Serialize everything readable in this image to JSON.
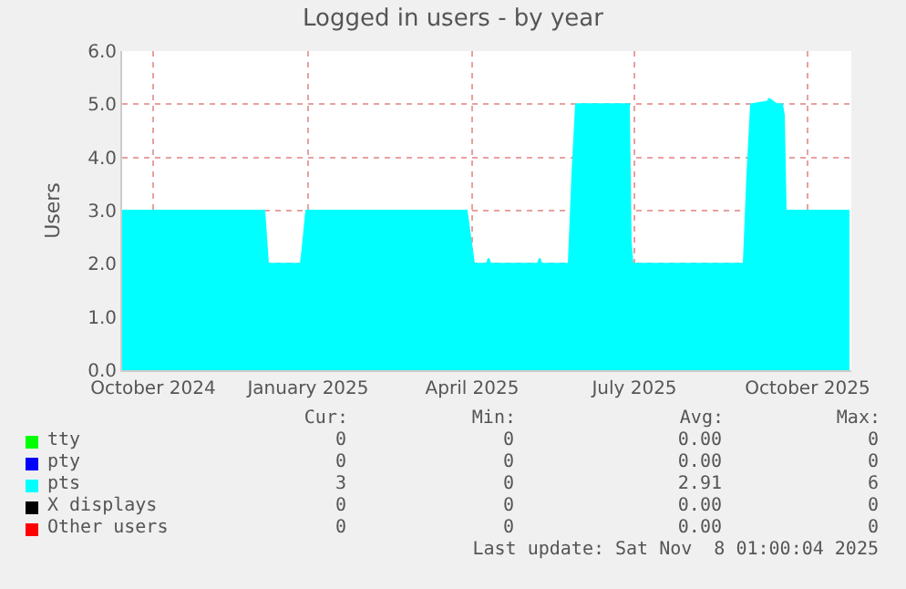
{
  "chart_data": {
    "type": "area",
    "title": "Logged in users - by year",
    "ylabel": "Users",
    "x": [
      "2024-10-04",
      "2024-12-21",
      "2024-12-22",
      "2024-12-23",
      "2025-01-10",
      "2025-01-11",
      "2025-01-13",
      "2025-04-11",
      "2025-04-13",
      "2025-04-15",
      "2025-04-22",
      "2025-04-23",
      "2025-04-24",
      "2025-05-20",
      "2025-05-21",
      "2025-05-22",
      "2025-06-06",
      "2025-06-08",
      "2025-06-10",
      "2025-07-09",
      "2025-07-10",
      "2025-07-11",
      "2025-09-10",
      "2025-09-12",
      "2025-09-14",
      "2025-09-23",
      "2025-09-24",
      "2025-09-28",
      "2025-10-01",
      "2025-10-02",
      "2025-10-03",
      "2025-11-07"
    ],
    "series": [
      {
        "name": "tty",
        "color": "#00ff00",
        "values": [
          null,
          null,
          null,
          null,
          null,
          null,
          null,
          null,
          null,
          null,
          null,
          null,
          null,
          null,
          null,
          null,
          null,
          null,
          null,
          null,
          null,
          null,
          null,
          null,
          null,
          null,
          null,
          null,
          null,
          null,
          null,
          null
        ]
      },
      {
        "name": "pty",
        "color": "#0000ff",
        "values": [
          null,
          null,
          null,
          null,
          null,
          null,
          null,
          null,
          null,
          null,
          null,
          null,
          null,
          null,
          null,
          null,
          null,
          null,
          null,
          null,
          null,
          null,
          null,
          null,
          null,
          null,
          null,
          null,
          null,
          null,
          null,
          null
        ]
      },
      {
        "name": "pts",
        "color": "#00ffff",
        "values": [
          3,
          3,
          2.5,
          2,
          2,
          2.3,
          3,
          3,
          2.5,
          2,
          2,
          2.1,
          2,
          2,
          2.1,
          2,
          2,
          3.7,
          5,
          5,
          2.4,
          2,
          2,
          3.7,
          5,
          5.05,
          5.1,
          5,
          5,
          4.8,
          3,
          3
        ]
      },
      {
        "name": "X displays",
        "color": "#000000",
        "values": [
          null,
          null,
          null,
          null,
          null,
          null,
          null,
          null,
          null,
          null,
          null,
          null,
          null,
          null,
          null,
          null,
          null,
          null,
          null,
          null,
          null,
          null,
          null,
          null,
          null,
          null,
          null,
          null,
          null,
          null,
          null,
          null
        ]
      },
      {
        "name": "Other users",
        "color": "#ff0000",
        "values": [
          null,
          null,
          null,
          null,
          null,
          null,
          null,
          null,
          null,
          null,
          null,
          null,
          null,
          null,
          null,
          null,
          null,
          null,
          null,
          null,
          null,
          null,
          null,
          null,
          null,
          null,
          null,
          null,
          null,
          null,
          null,
          null
        ]
      }
    ],
    "xlim": [
      "2024-10-04",
      "2025-11-08"
    ],
    "xticks": [
      {
        "value": "2024-10-21",
        "label": "October 2024"
      },
      {
        "value": "2025-01-14",
        "label": "January 2025"
      },
      {
        "value": "2025-04-14",
        "label": "April 2025"
      },
      {
        "value": "2025-07-12",
        "label": "July 2025"
      },
      {
        "value": "2025-10-15",
        "label": "October 2025"
      }
    ],
    "ylim": [
      0,
      6
    ],
    "yticks": [
      {
        "value": 0,
        "label": "0.0"
      },
      {
        "value": 1,
        "label": "1.0"
      },
      {
        "value": 2,
        "label": "2.0"
      },
      {
        "value": 3,
        "label": "3.0"
      },
      {
        "value": 4,
        "label": "4.0"
      },
      {
        "value": 5,
        "label": "5.0"
      },
      {
        "value": 6,
        "label": "6.0"
      }
    ],
    "grid": true,
    "legend": "bottom",
    "annotations": [
      "Cur:",
      "Min:",
      "Avg:",
      "Max:",
      "0",
      "0",
      "0.00",
      "0",
      "0",
      "0",
      "0.00",
      "0",
      "3",
      "0",
      "2.91",
      "6",
      "0",
      "0",
      "0.00",
      "0",
      "0",
      "0",
      "0.00",
      "0",
      "Last update: Sat Nov  8 01:00:04 2025"
    ]
  }
}
